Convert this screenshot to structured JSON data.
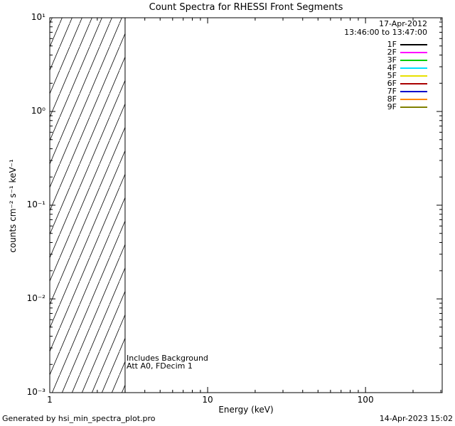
{
  "footer": {
    "left": "Generated by hsi_min_spectra_plot.pro",
    "right": "14-Apr-2023 15:02"
  },
  "chart_data": {
    "type": "line",
    "title": "Count Spectra for RHESSI Front Segments",
    "xlabel": "Energy (keV)",
    "ylabel": "counts cm⁻² s⁻¹ keV⁻¹",
    "xscale": "log",
    "yscale": "log",
    "xlim": [
      1,
      306
    ],
    "ylim": [
      0.001,
      10
    ],
    "grid": false,
    "legend_position": "top-right-inside",
    "x_ticks": [
      {
        "value": 1,
        "label": "1"
      },
      {
        "value": 10,
        "label": "10"
      },
      {
        "value": 100,
        "label": "100"
      }
    ],
    "y_ticks": [
      {
        "value": 10,
        "label": "10¹"
      },
      {
        "value": 1,
        "label": "10⁰"
      },
      {
        "value": 0.1,
        "label": "10⁻¹"
      },
      {
        "value": 0.01,
        "label": "10⁻²"
      },
      {
        "value": 0.001,
        "label": "10⁻³"
      }
    ],
    "hatched_region": {
      "x_start_keV": 1,
      "x_end_keV": 3,
      "style": "diagonal-hatch-full-height"
    },
    "series": [],
    "legend": {
      "date": "17-Apr-2012",
      "time_range": "13:46:00 to 13:47:00",
      "entries": [
        {
          "label": "1F",
          "color": "#000000"
        },
        {
          "label": "2F",
          "color": "#ff00ff"
        },
        {
          "label": "3F",
          "color": "#00cc00"
        },
        {
          "label": "4F",
          "color": "#00dfff"
        },
        {
          "label": "5F",
          "color": "#e8e000"
        },
        {
          "label": "6F",
          "color": "#aa0000"
        },
        {
          "label": "7F",
          "color": "#0000cc"
        },
        {
          "label": "8F",
          "color": "#ff8800"
        },
        {
          "label": "9F",
          "color": "#808000"
        }
      ]
    },
    "annotations": [
      "Includes Background",
      "Att A0, FDecim 1"
    ]
  }
}
